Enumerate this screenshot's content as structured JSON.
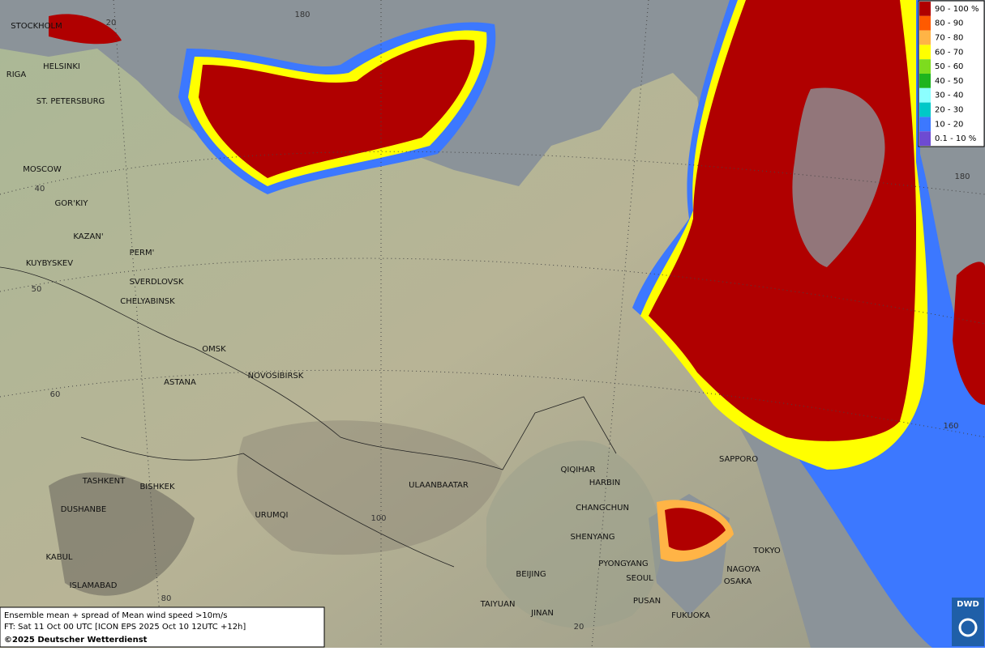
{
  "cities": [
    "STOCKHOLM",
    "HELSINKI",
    "RIGA",
    "ST. PETERSBURG",
    "MOSCOW",
    "GOR'KIY",
    "KAZAN'",
    "PERM'",
    "KUYBYSKEV",
    "SVERDLOVSK",
    "CHELYABINSK",
    "OMSK",
    "NOVOSIBIRSK",
    "ASTANA",
    "TASHKENT",
    "BISHKEK",
    "DUSHANBE",
    "URUMQI",
    "KABUL",
    "ISLAMABAD",
    "ULAANBAATAR",
    "QIQIHAR",
    "HARBIN",
    "CHANGCHUN",
    "SHENYANG",
    "PYONGYANG",
    "SEOUL",
    "BEIJING",
    "TAIYUAN",
    "JINAN",
    "PUSAN",
    "FUKUOKA",
    "SAPPORO",
    "TOKYO",
    "NAGOYA",
    "OSAKA"
  ],
  "grid_labels": [
    "20",
    "180",
    "40",
    "50",
    "60",
    "100",
    "80",
    "20",
    "180",
    "160"
  ],
  "legend": [
    {
      "label": "90 - 100 %",
      "color": "#b00000"
    },
    {
      "label": "80 - 90",
      "color": "#ff5a00"
    },
    {
      "label": "70 - 80",
      "color": "#ffb446"
    },
    {
      "label": "60 - 70",
      "color": "#ffff00"
    },
    {
      "label": "50 - 60",
      "color": "#7ddc1e"
    },
    {
      "label": "40 - 50",
      "color": "#1eb41e"
    },
    {
      "label": "30 - 40",
      "color": "#8cffff"
    },
    {
      "label": "20 - 30",
      "color": "#00c8c8"
    },
    {
      "label": "10 - 20",
      "color": "#3c78ff"
    },
    {
      "label": "0.1 - 10 %",
      "color": "#6e4bd2"
    }
  ],
  "footer": {
    "line1": "Ensemble mean + spread of Mean wind speed >10m/s",
    "line2": "FT: Sat 11 Oct 00 UTC [ICON EPS 2025 Oct 10 12UTC +12h]",
    "line3": "©2025 Deutscher Wetterdienst"
  },
  "logo": "DWD"
}
